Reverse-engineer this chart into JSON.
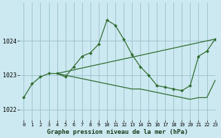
{
  "title": "Graphe pression niveau de la mer (hPa)",
  "background_color": "#cce8f0",
  "grid_color": "#9dc4d0",
  "line_color": "#2d6b2d",
  "xlim": [
    -0.5,
    23
  ],
  "ylim": [
    1021.7,
    1025.1
  ],
  "yticks": [
    1022,
    1023,
    1024
  ],
  "xticks": [
    0,
    1,
    2,
    3,
    4,
    5,
    6,
    7,
    8,
    9,
    10,
    11,
    12,
    13,
    14,
    15,
    16,
    17,
    18,
    19,
    20,
    21,
    22,
    23
  ],
  "series_main": {
    "x": [
      0,
      1,
      2,
      3,
      4,
      5,
      6,
      7,
      8,
      9,
      10,
      11,
      12,
      13,
      14,
      15,
      16,
      17,
      18,
      19,
      20,
      21,
      22,
      23
    ],
    "y": [
      1022.35,
      1022.75,
      1022.95,
      1023.05,
      1023.05,
      1022.95,
      1023.25,
      1023.55,
      1023.65,
      1023.9,
      1024.6,
      1024.45,
      1024.05,
      1023.6,
      1023.25,
      1023.0,
      1022.7,
      1022.65,
      1022.6,
      1022.55,
      1022.7,
      1023.55,
      1023.7,
      1024.05
    ]
  },
  "series_decline": {
    "x": [
      4,
      5,
      6,
      7,
      8,
      9,
      10,
      11,
      12,
      13,
      14,
      15,
      16,
      17,
      18,
      19,
      20,
      21,
      22,
      23
    ],
    "y": [
      1023.05,
      1023.0,
      1022.95,
      1022.9,
      1022.85,
      1022.8,
      1022.75,
      1022.7,
      1022.65,
      1022.6,
      1022.6,
      1022.55,
      1022.5,
      1022.45,
      1022.4,
      1022.35,
      1022.3,
      1022.35,
      1022.35,
      1022.85
    ]
  },
  "series_straight1": {
    "x": [
      4,
      23
    ],
    "y": [
      1023.05,
      1024.05
    ]
  },
  "series_zigzag": {
    "x": [
      15,
      16,
      17,
      18,
      19,
      20
    ],
    "y": [
      1023.0,
      1022.7,
      1022.6,
      1022.7,
      1022.45,
      1022.75
    ]
  }
}
